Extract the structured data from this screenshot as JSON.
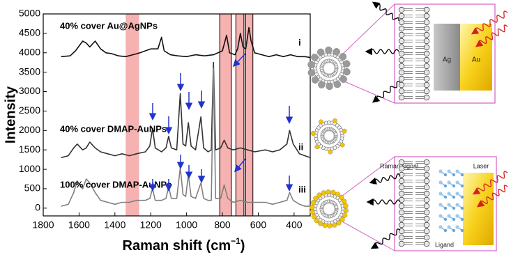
{
  "chart_data": {
    "type": "line",
    "xlabel": [
      "Raman shift (cm",
      "−1",
      ")"
    ],
    "ylabel": "Intensity",
    "xlim": [
      1800,
      310
    ],
    "ylim": [
      -200,
      5000
    ],
    "xticks": [
      1800,
      1600,
      1400,
      1200,
      1000,
      800,
      600,
      400
    ],
    "yticks": [
      0,
      500,
      1000,
      1500,
      2000,
      2500,
      3000,
      3500,
      4000,
      4500,
      5000
    ],
    "band_color": "#f4a3a3",
    "shaded_bands": [
      {
        "range": [
          1340,
          1265
        ],
        "outlined": false
      },
      {
        "range": [
          815,
          750
        ],
        "outlined": true
      },
      {
        "range": [
          725,
          680
        ],
        "outlined": true
      },
      {
        "range": [
          670,
          630
        ],
        "outlined": true
      }
    ],
    "series": [
      {
        "name": "40% cover Au@AgNPs",
        "tag": "i",
        "color": "#111111",
        "x": [
          1700,
          1650,
          1620,
          1580,
          1560,
          1540,
          1510,
          1480,
          1450,
          1420,
          1380,
          1340,
          1300,
          1260,
          1230,
          1200,
          1160,
          1140,
          1125,
          1090,
          1050,
          1000,
          950,
          900,
          850,
          800,
          777,
          760,
          730,
          715,
          700,
          685,
          670,
          652,
          640,
          620,
          580,
          540,
          500,
          460,
          420,
          380,
          340,
          310
        ],
        "values": [
          3900,
          3920,
          4050,
          4300,
          4250,
          4150,
          4300,
          4100,
          4000,
          3980,
          3920,
          3900,
          3950,
          4000,
          4050,
          4100,
          4100,
          4400,
          4050,
          3950,
          3920,
          3900,
          3950,
          3920,
          3950,
          4050,
          4450,
          4000,
          3950,
          4100,
          4500,
          4150,
          4100,
          4650,
          4300,
          4000,
          3950,
          3900,
          3950,
          3900,
          3950,
          3900,
          3900,
          3880
        ]
      },
      {
        "name": "40% cover DMAP-AuNPs",
        "tag": "ii",
        "color": "#333333",
        "x": [
          1700,
          1660,
          1630,
          1610,
          1580,
          1560,
          1540,
          1510,
          1480,
          1440,
          1400,
          1360,
          1320,
          1280,
          1230,
          1205,
          1190,
          1175,
          1140,
          1115,
          1100,
          1085,
          1055,
          1035,
          1020,
          1005,
          990,
          975,
          950,
          920,
          905,
          880,
          862,
          850,
          838,
          810,
          790,
          770,
          740,
          700,
          660,
          620,
          560,
          520,
          480,
          440,
          425,
          405,
          370,
          340,
          310
        ],
        "values": [
          1300,
          1350,
          1550,
          1650,
          1500,
          1550,
          1700,
          1550,
          1450,
          1400,
          1350,
          1400,
          1350,
          1400,
          1450,
          1600,
          2050,
          1550,
          1450,
          1550,
          1850,
          1550,
          1500,
          2950,
          1650,
          1600,
          2200,
          1600,
          1500,
          2350,
          1550,
          1450,
          1500,
          3750,
          1500,
          1550,
          1750,
          1550,
          1500,
          1550,
          1500,
          1450,
          1500,
          1450,
          1500,
          1650,
          2000,
          1650,
          1400,
          1350,
          1300
        ]
      },
      {
        "name": "100% cover DMAP-AuNPs",
        "tag": "iii",
        "color": "#808080",
        "x": [
          1700,
          1660,
          1630,
          1610,
          1580,
          1560,
          1540,
          1510,
          1480,
          1440,
          1400,
          1360,
          1320,
          1280,
          1230,
          1205,
          1190,
          1175,
          1140,
          1115,
          1100,
          1085,
          1055,
          1035,
          1020,
          1005,
          990,
          975,
          950,
          920,
          905,
          880,
          862,
          850,
          838,
          810,
          790,
          770,
          740,
          700,
          660,
          620,
          560,
          520,
          480,
          440,
          425,
          405,
          370,
          340,
          310
        ],
        "values": [
          50,
          100,
          400,
          700,
          500,
          750,
          650,
          400,
          200,
          150,
          100,
          150,
          150,
          200,
          200,
          250,
          500,
          200,
          200,
          250,
          550,
          250,
          250,
          1050,
          350,
          300,
          850,
          300,
          250,
          650,
          250,
          200,
          200,
          3600,
          250,
          250,
          600,
          250,
          150,
          200,
          150,
          150,
          150,
          100,
          150,
          200,
          400,
          200,
          100,
          50,
          50
        ]
      }
    ]
  },
  "diagram": {
    "ag": "Ag",
    "au": "Au",
    "raman_signal": "Raman signal",
    "laser": "Laser",
    "ligand": "Ligand"
  }
}
